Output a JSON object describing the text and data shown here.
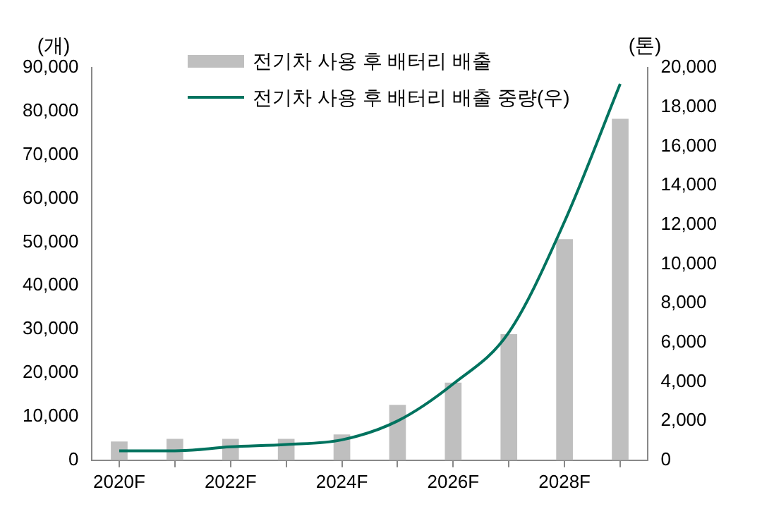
{
  "chart_data": {
    "type": "bar",
    "ylabel": "(개)",
    "y2label": "(톤)",
    "categories": [
      "2020F",
      null,
      "2022F",
      null,
      "2024F",
      null,
      "2026F",
      null,
      "2028F",
      null
    ],
    "series": [
      {
        "name": "전기차 사용 후 배터리 배출",
        "color": "#bfbfbf",
        "values": [
          4300,
          4900,
          4900,
          4900,
          5900,
          12700,
          17800,
          28900,
          50700,
          78300
        ]
      },
      {
        "name": "전기차 사용 후 배터리 배출 중량(우)",
        "type": "line",
        "axis": "y2",
        "color": "#00735f",
        "values": [
          480,
          480,
          680,
          800,
          1040,
          2000,
          3890,
          6520,
          12160,
          19170
        ]
      }
    ],
    "ylim": [
      0,
      90000
    ],
    "yticks": [
      0,
      {
        "value": 10000,
        "label": "10,000"
      },
      {
        "value": 20000,
        "label": "20,000"
      },
      {
        "value": 30000,
        "label": "30,000"
      },
      {
        "value": 40000,
        "label": "40,000"
      },
      {
        "value": 50000,
        "label": "50,000"
      },
      {
        "value": 60000,
        "label": "60,000"
      },
      {
        "value": 70000,
        "label": "70,000"
      },
      {
        "value": 80000,
        "label": "80,000"
      },
      {
        "value": 90000,
        "label": "90,000"
      }
    ],
    "y2lim": [
      0,
      20000
    ],
    "y2ticks": [
      0,
      {
        "value": 2000,
        "label": "2,000"
      },
      {
        "value": 4000,
        "label": "4,000"
      },
      {
        "value": 6000,
        "label": "6,000"
      },
      {
        "value": 8000,
        "label": "8,000"
      },
      {
        "value": 10000,
        "label": "10,000"
      },
      {
        "value": 12000,
        "label": "12,000"
      },
      {
        "value": 14000,
        "label": "14,000"
      },
      {
        "value": 16000,
        "label": "16,000"
      },
      {
        "value": 18000,
        "label": "18,000"
      },
      {
        "value": 20000,
        "label": "20,000"
      }
    ],
    "grid": false,
    "legend": "top",
    "marker": "none",
    "line_style": "solid"
  }
}
